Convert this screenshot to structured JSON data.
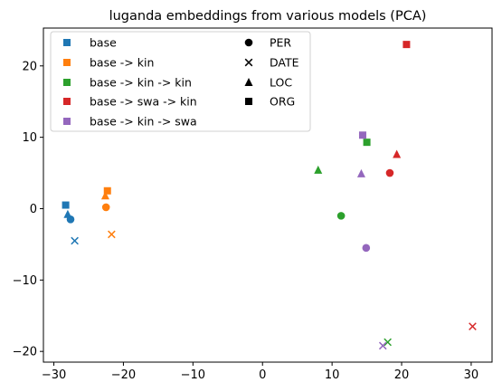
{
  "chart_data": {
    "type": "scatter",
    "title": "luganda embeddings from various models (PCA)",
    "xlabel": "",
    "ylabel": "",
    "xlim": [
      -31.5,
      33
    ],
    "ylim": [
      -21.5,
      25.3
    ],
    "xticks": [
      -30,
      -20,
      -10,
      0,
      10,
      20,
      30
    ],
    "yticks": [
      -20,
      -10,
      0,
      10,
      20
    ],
    "grid": false,
    "legend_placement": "top-left",
    "colors": {
      "base": "#1f77b4",
      "base -> kin": "#ff7f0e",
      "base -> kin -> kin": "#2ca02c",
      "base -> swa -> kin": "#d62728",
      "base -> kin -> swa": "#9467bd"
    },
    "series": [
      {
        "name": "base",
        "color": "#1f77b4",
        "points": [
          {
            "label": "PER",
            "x": -27.6,
            "y": -1.5
          },
          {
            "label": "DATE",
            "x": -27.0,
            "y": -4.5
          },
          {
            "label": "LOC",
            "x": -28.0,
            "y": -0.8
          },
          {
            "label": "ORG",
            "x": -28.3,
            "y": 0.5
          }
        ]
      },
      {
        "name": "base -> kin",
        "color": "#ff7f0e",
        "points": [
          {
            "label": "PER",
            "x": -22.5,
            "y": 0.2
          },
          {
            "label": "DATE",
            "x": -21.7,
            "y": -3.6
          },
          {
            "label": "LOC",
            "x": -22.6,
            "y": 1.8
          },
          {
            "label": "ORG",
            "x": -22.3,
            "y": 2.5
          }
        ]
      },
      {
        "name": "base -> kin -> kin",
        "color": "#2ca02c",
        "points": [
          {
            "label": "PER",
            "x": 11.3,
            "y": -1.0
          },
          {
            "label": "DATE",
            "x": 18.0,
            "y": -18.7
          },
          {
            "label": "LOC",
            "x": 8.0,
            "y": 5.4
          },
          {
            "label": "ORG",
            "x": 15.0,
            "y": 9.3
          }
        ]
      },
      {
        "name": "base -> swa -> kin",
        "color": "#d62728",
        "points": [
          {
            "label": "PER",
            "x": 18.3,
            "y": 5.0
          },
          {
            "label": "DATE",
            "x": 30.2,
            "y": -16.5
          },
          {
            "label": "LOC",
            "x": 19.3,
            "y": 7.6
          },
          {
            "label": "ORG",
            "x": 20.7,
            "y": 23.0
          }
        ]
      },
      {
        "name": "base -> kin -> swa",
        "color": "#9467bd",
        "points": [
          {
            "label": "PER",
            "x": 14.9,
            "y": -5.5
          },
          {
            "label": "DATE",
            "x": 17.3,
            "y": -19.2
          },
          {
            "label": "LOC",
            "x": 14.2,
            "y": 4.9
          },
          {
            "label": "ORG",
            "x": 14.4,
            "y": 10.3
          }
        ]
      }
    ],
    "marker_legend": [
      {
        "label": "PER",
        "marker": "circle"
      },
      {
        "label": "DATE",
        "marker": "x"
      },
      {
        "label": "LOC",
        "marker": "triangle"
      },
      {
        "label": "ORG",
        "marker": "square"
      }
    ]
  }
}
